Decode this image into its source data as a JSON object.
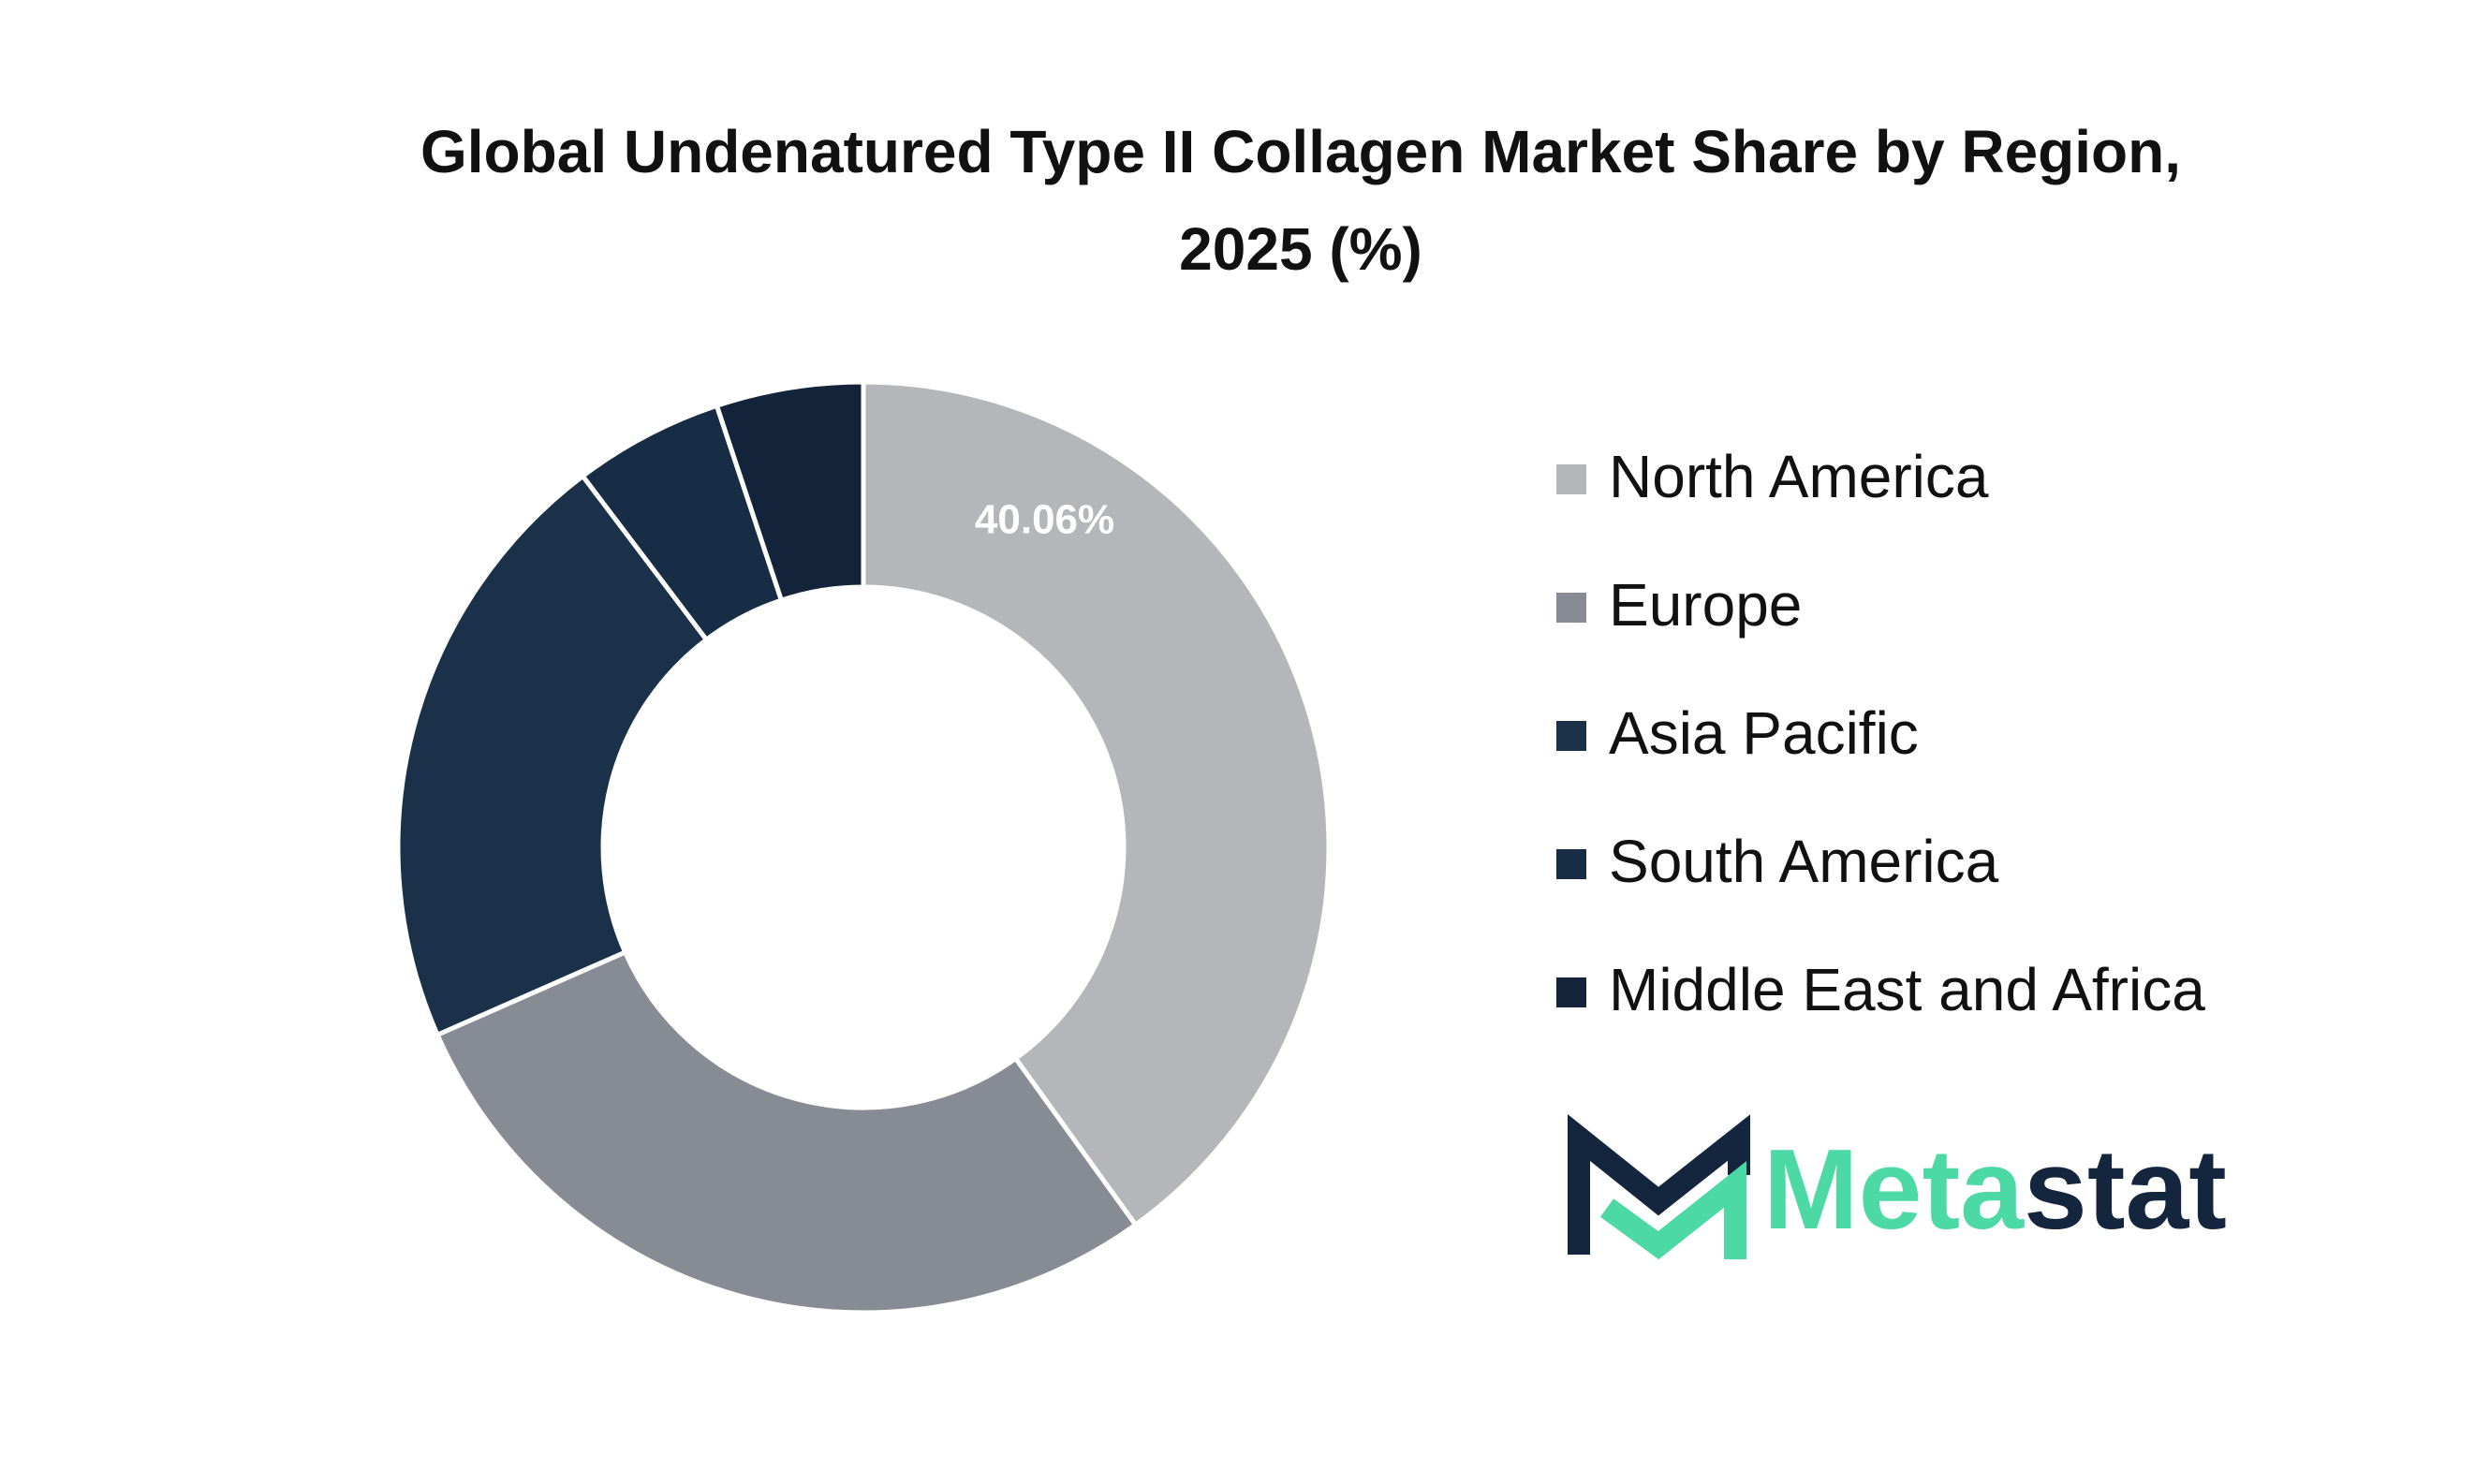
{
  "chart_data": {
    "type": "donut",
    "title": "Global Undenatured Type II Collagen Market Share by Region, 2025 (%)",
    "categories": [
      "North America",
      "Europe",
      "Asia Pacific",
      "South America",
      "Middle East and Africa"
    ],
    "values": [
      40.06,
      28.34,
      21.3,
      5.2,
      5.1
    ],
    "value_labels": [
      "40.06%",
      null,
      null,
      null,
      null
    ],
    "colors": [
      "#b5b6ba",
      "#868b94",
      "#1b3049",
      "#172c45",
      "#12233a"
    ],
    "legend": "right"
  },
  "logo": {
    "parts": [
      "Meta",
      "stat"
    ]
  }
}
